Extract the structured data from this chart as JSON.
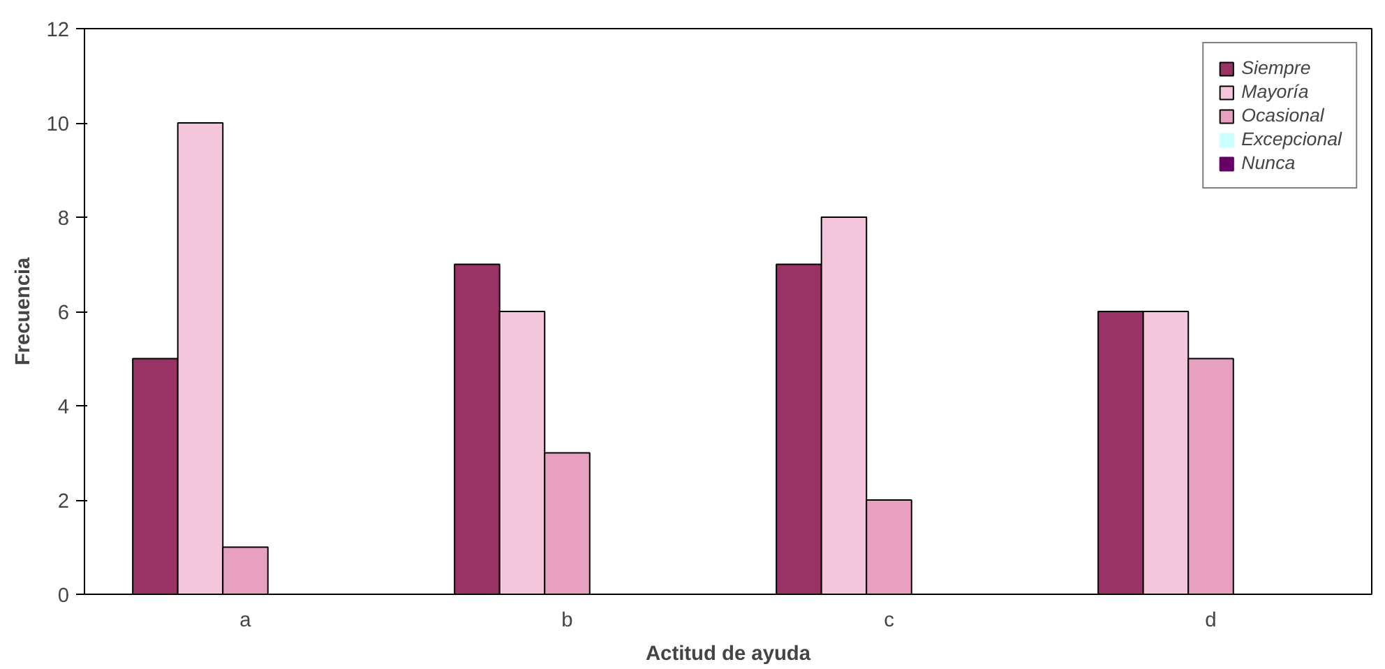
{
  "chart_data": {
    "type": "bar",
    "xlabel": "Actitud de ayuda",
    "ylabel": "Frecuencia",
    "categories": [
      "a",
      "b",
      "c",
      "d"
    ],
    "series": [
      {
        "name": "Siempre",
        "color": "#993366",
        "values": [
          5,
          7,
          7,
          6
        ]
      },
      {
        "name": "Mayoría",
        "color": "#f4c6dc",
        "values": [
          10,
          6,
          8,
          6
        ]
      },
      {
        "name": "Ocasional",
        "color": "#e8a0c0",
        "values": [
          1,
          3,
          2,
          5
        ]
      },
      {
        "name": "Excepcional",
        "color": "#ccffff",
        "values": [
          0,
          0,
          0,
          0
        ]
      },
      {
        "name": "Nunca",
        "color": "#660066",
        "values": [
          0,
          0,
          0,
          0
        ]
      }
    ],
    "ylim": [
      0,
      12
    ],
    "yticks": [
      0,
      2,
      4,
      6,
      8,
      10,
      12
    ],
    "grid": false,
    "legend": "top right"
  }
}
